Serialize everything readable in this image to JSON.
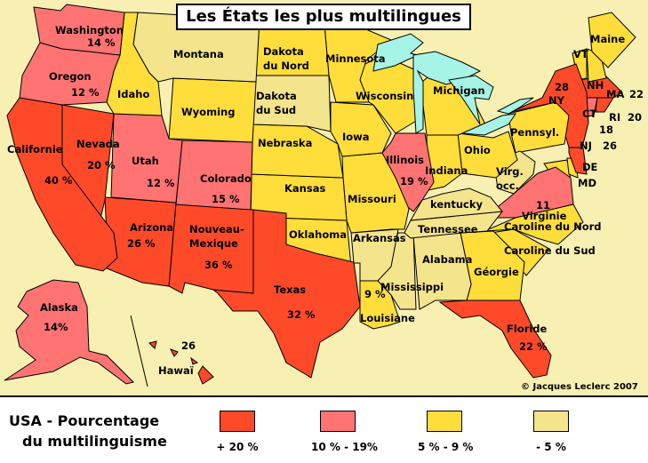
{
  "title": "Les États les plus multilingues",
  "credit": "© Jacques Leclerc 2007",
  "colors": {
    "background": "#F8F0B2",
    "lakes": "#A6F4E6"
  },
  "legend": {
    "title_line1": "USA - Pourcentage",
    "title_line2": "du multilinguisme",
    "items": [
      {
        "label": "+ 20 %",
        "color": "#FF4A2A"
      },
      {
        "label": "10 % - 19%",
        "color": "#FF7373"
      },
      {
        "label": "5 % -  9  %",
        "color": "#FFDD3A"
      },
      {
        "label": "- 5 %",
        "color": "#F4E48C"
      }
    ]
  },
  "states": [
    {
      "id": "WA",
      "name": "Washington",
      "percent": "14 %",
      "category": 1
    },
    {
      "id": "OR",
      "name": "Oregon",
      "percent": "12 %",
      "category": 1
    },
    {
      "id": "CA",
      "name": "Californie",
      "percent": "40 %",
      "category": 0
    },
    {
      "id": "NV",
      "name": "Nevada",
      "percent": "20 %",
      "category": 0
    },
    {
      "id": "ID",
      "name": "Idaho",
      "percent": "",
      "category": 2
    },
    {
      "id": "MT",
      "name": "Montana",
      "percent": "",
      "category": 3
    },
    {
      "id": "WY",
      "name": "Wyoming",
      "percent": "",
      "category": 2
    },
    {
      "id": "UT",
      "name": "Utah",
      "percent": "12 %",
      "category": 1
    },
    {
      "id": "CO",
      "name": "Colorado",
      "percent": "15 %",
      "category": 1
    },
    {
      "id": "AZ",
      "name": "Arizona",
      "percent": "26 %",
      "category": 0
    },
    {
      "id": "NM",
      "name": "Nouveau-\nMexique",
      "percent": "36 %",
      "category": 0
    },
    {
      "id": "TX",
      "name": "Texas",
      "percent": "32 %",
      "category": 0
    },
    {
      "id": "ND",
      "name": "Dakota\ndu Nord",
      "percent": "",
      "category": 2
    },
    {
      "id": "SD",
      "name": "Dakota\ndu Sud",
      "percent": "",
      "category": 3
    },
    {
      "id": "NE",
      "name": "Nebraska",
      "percent": "",
      "category": 2
    },
    {
      "id": "KS",
      "name": "Kansas",
      "percent": "",
      "category": 2
    },
    {
      "id": "OK",
      "name": "Oklahoma",
      "percent": "",
      "category": 2
    },
    {
      "id": "MN",
      "name": "Minnesota",
      "percent": "",
      "category": 2
    },
    {
      "id": "IA",
      "name": "Iowa",
      "percent": "",
      "category": 2
    },
    {
      "id": "MO",
      "name": "Missouri",
      "percent": "",
      "category": 2
    },
    {
      "id": "AR",
      "name": "Arkansas",
      "percent": "",
      "category": 3
    },
    {
      "id": "LA",
      "name": "Louisiane",
      "percent": "9 %",
      "category": 2
    },
    {
      "id": "WI",
      "name": "Wisconsin",
      "percent": "",
      "category": 2
    },
    {
      "id": "IL",
      "name": "Illinois",
      "percent": "19 %",
      "category": 1
    },
    {
      "id": "MI",
      "name": "Michigan",
      "percent": "",
      "category": 2
    },
    {
      "id": "IN",
      "name": "Indiana",
      "percent": "",
      "category": 2
    },
    {
      "id": "OH",
      "name": "Ohio",
      "percent": "",
      "category": 2
    },
    {
      "id": "KY",
      "name": "kentucky",
      "percent": "",
      "category": 3
    },
    {
      "id": "TN",
      "name": "Tennessee",
      "percent": "",
      "category": 3
    },
    {
      "id": "MS",
      "name": "Mississippi",
      "percent": "",
      "category": 3
    },
    {
      "id": "AL",
      "name": "Alabama",
      "percent": "",
      "category": 3
    },
    {
      "id": "GA",
      "name": "Géorgie",
      "percent": "",
      "category": 2
    },
    {
      "id": "FL",
      "name": "Floride",
      "percent": "22 %",
      "category": 0
    },
    {
      "id": "SC",
      "name": "Caroline du Sud",
      "percent": "",
      "category": 2
    },
    {
      "id": "NC",
      "name": "Caroline du Nord",
      "percent": "",
      "category": 2
    },
    {
      "id": "VA",
      "name": "Virginie",
      "percent": "11",
      "category": 1
    },
    {
      "id": "WV",
      "name": "Virg.\nocc.",
      "percent": "",
      "category": 3
    },
    {
      "id": "PA",
      "name": "Pennsyl.",
      "percent": "",
      "category": 2
    },
    {
      "id": "NY",
      "name": "NY",
      "percent": "28",
      "category": 0
    },
    {
      "id": "NJ",
      "name": "NJ",
      "percent": "26",
      "category": 0
    },
    {
      "id": "DE",
      "name": "DE",
      "percent": "",
      "category": 2
    },
    {
      "id": "MD",
      "name": "MD",
      "percent": "",
      "category": 2
    },
    {
      "id": "ME",
      "name": "Maine",
      "percent": "",
      "category": 2
    },
    {
      "id": "VT",
      "name": "VT",
      "percent": "",
      "category": 2
    },
    {
      "id": "NH",
      "name": "NH",
      "percent": "",
      "category": 2
    },
    {
      "id": "MA",
      "name": "MA",
      "percent": "22",
      "category": 0
    },
    {
      "id": "CT",
      "name": "CT",
      "percent": "18",
      "category": 1
    },
    {
      "id": "RI",
      "name": "RI",
      "percent": "20",
      "category": 0
    },
    {
      "id": "AK",
      "name": "Alaska",
      "percent": "14%",
      "category": 1
    },
    {
      "id": "HI",
      "name": "Hawaï",
      "percent": "26",
      "category": 0
    }
  ]
}
